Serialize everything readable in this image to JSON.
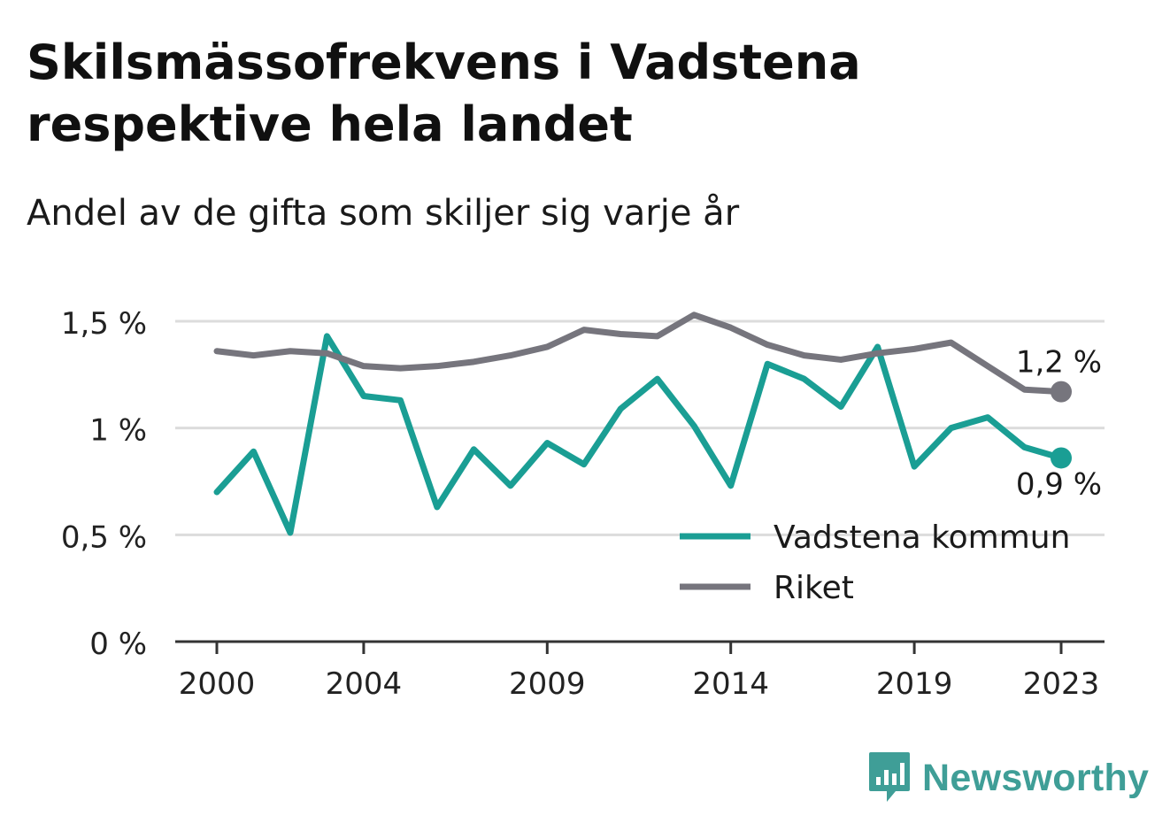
{
  "title": "Skilsmässofrekvens i Vadstena respektive hela landet",
  "subtitle": "Andel av de gifta som skiljer sig varje år",
  "brand": "Newsworthy",
  "colors": {
    "vadstena": "#1a9e94",
    "riket": "#76757d",
    "grid": "#dcdcdc",
    "axis": "#333333",
    "brand": "#3f9e97"
  },
  "chart_data": {
    "type": "line",
    "x": [
      2000,
      2001,
      2002,
      2003,
      2004,
      2005,
      2006,
      2007,
      2008,
      2009,
      2010,
      2011,
      2012,
      2013,
      2014,
      2015,
      2016,
      2017,
      2018,
      2019,
      2020,
      2021,
      2022,
      2023
    ],
    "x_tick_labels": [
      "2000",
      "2004",
      "2009",
      "2014",
      "2019",
      "2023"
    ],
    "y_tick_labels": [
      "0 %",
      "0,5 %",
      "1 %",
      "1,5 %"
    ],
    "y_ticks": [
      0,
      0.5,
      1,
      1.5
    ],
    "ylim": [
      0,
      1.5
    ],
    "grid": true,
    "legend_position": "bottom-right",
    "series": [
      {
        "name": "Vadstena kommun",
        "color_key": "vadstena",
        "values": [
          0.7,
          0.89,
          0.51,
          1.43,
          1.15,
          1.13,
          0.63,
          0.9,
          0.73,
          0.93,
          0.83,
          1.09,
          1.23,
          1.01,
          0.73,
          1.3,
          1.23,
          1.1,
          1.38,
          0.82,
          1.0,
          1.05,
          0.91,
          0.86
        ],
        "end_label": "0,9 %"
      },
      {
        "name": "Riket",
        "color_key": "riket",
        "values": [
          1.36,
          1.34,
          1.36,
          1.35,
          1.29,
          1.28,
          1.29,
          1.31,
          1.34,
          1.38,
          1.46,
          1.44,
          1.43,
          1.53,
          1.47,
          1.39,
          1.34,
          1.32,
          1.35,
          1.37,
          1.4,
          1.29,
          1.18,
          1.17
        ],
        "end_label": "1,2 %"
      }
    ]
  }
}
